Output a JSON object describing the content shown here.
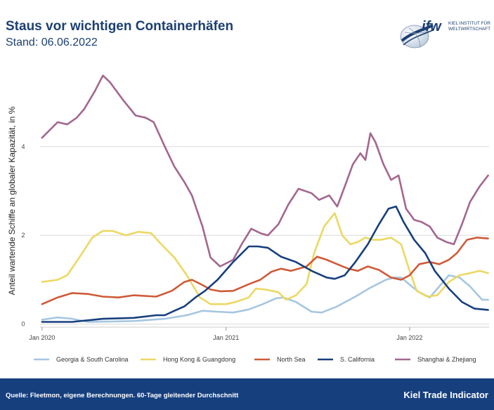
{
  "header": {
    "title": "Staus vor wichtigen Containerhäfen",
    "subtitle": "Stand: 06.06.2022"
  },
  "logo": {
    "mark": "ifw",
    "line1": "KIEL INSTITUT FÜR",
    "line2": "WELTWIRTSCHAFT",
    "icon": "globe-icon"
  },
  "footer": {
    "source": "Quelle: Fleetmon, eigene Berechnungen. 60-Tage gleitender Durchschnitt",
    "brand": "Kiel Trade Indicator"
  },
  "colors": {
    "header_text": "#1c3f73",
    "footer_bg": "#163f7e",
    "grid": "#d9d9d9"
  },
  "chart_data": {
    "type": "line",
    "ylabel": "Anteil wartende Schiffe an globaler Kapazität, in %",
    "xlabel": "",
    "ylim": [
      -0.1,
      5.8
    ],
    "xlim": [
      "2019-12-28",
      "2022-06-08"
    ],
    "yticks": [
      0,
      2,
      4
    ],
    "xticks": [
      {
        "x": "2020-01-01",
        "label": "Jan 2020"
      },
      {
        "x": "2021-01-01",
        "label": "Jan 2021"
      },
      {
        "x": "2022-01-01",
        "label": "Jan 2022"
      }
    ],
    "grid": true,
    "legend_position": "bottom",
    "series": [
      {
        "name": "Georgia & South Carolina",
        "color": "#a6c6e0",
        "points": [
          [
            "2020-01-01",
            0.1
          ],
          [
            "2020-02-01",
            0.15
          ],
          [
            "2020-03-01",
            0.12
          ],
          [
            "2020-04-01",
            0.05
          ],
          [
            "2020-05-15",
            0.06
          ],
          [
            "2020-07-01",
            0.07
          ],
          [
            "2020-09-01",
            0.12
          ],
          [
            "2020-10-15",
            0.2
          ],
          [
            "2020-11-15",
            0.3
          ],
          [
            "2020-12-15",
            0.28
          ],
          [
            "2021-01-15",
            0.26
          ],
          [
            "2021-02-15",
            0.33
          ],
          [
            "2021-03-15",
            0.45
          ],
          [
            "2021-04-10",
            0.58
          ],
          [
            "2021-04-25",
            0.6
          ],
          [
            "2021-05-20",
            0.5
          ],
          [
            "2021-06-20",
            0.28
          ],
          [
            "2021-07-10",
            0.26
          ],
          [
            "2021-08-10",
            0.4
          ],
          [
            "2021-09-15",
            0.62
          ],
          [
            "2021-10-15",
            0.82
          ],
          [
            "2021-11-15",
            1.0
          ],
          [
            "2021-12-01",
            1.05
          ],
          [
            "2021-12-15",
            1.05
          ],
          [
            "2022-01-05",
            0.85
          ],
          [
            "2022-01-20",
            0.72
          ],
          [
            "2022-02-10",
            0.6
          ],
          [
            "2022-03-01",
            0.85
          ],
          [
            "2022-03-20",
            1.1
          ],
          [
            "2022-04-10",
            1.05
          ],
          [
            "2022-05-01",
            0.85
          ],
          [
            "2022-05-25",
            0.55
          ],
          [
            "2022-06-06",
            0.55
          ]
        ]
      },
      {
        "name": "Hong Kong & Guangdong",
        "color": "#ecd863",
        "points": [
          [
            "2020-01-01",
            0.95
          ],
          [
            "2020-02-01",
            1.0
          ],
          [
            "2020-02-20",
            1.1
          ],
          [
            "2020-03-15",
            1.5
          ],
          [
            "2020-04-10",
            1.95
          ],
          [
            "2020-05-01",
            2.1
          ],
          [
            "2020-05-20",
            2.1
          ],
          [
            "2020-06-15",
            2.0
          ],
          [
            "2020-07-10",
            2.08
          ],
          [
            "2020-08-05",
            2.05
          ],
          [
            "2020-08-25",
            1.8
          ],
          [
            "2020-09-20",
            1.5
          ],
          [
            "2020-10-15",
            1.1
          ],
          [
            "2020-11-10",
            0.6
          ],
          [
            "2020-12-01",
            0.45
          ],
          [
            "2021-01-01",
            0.45
          ],
          [
            "2021-01-20",
            0.5
          ],
          [
            "2021-02-15",
            0.6
          ],
          [
            "2021-03-01",
            0.8
          ],
          [
            "2021-03-20",
            0.78
          ],
          [
            "2021-04-15",
            0.72
          ],
          [
            "2021-04-30",
            0.55
          ],
          [
            "2021-05-20",
            0.65
          ],
          [
            "2021-06-10",
            0.9
          ],
          [
            "2021-06-25",
            1.6
          ],
          [
            "2021-07-15",
            2.2
          ],
          [
            "2021-08-05",
            2.5
          ],
          [
            "2021-08-20",
            2.0
          ],
          [
            "2021-09-05",
            1.8
          ],
          [
            "2021-09-20",
            1.85
          ],
          [
            "2021-10-05",
            1.95
          ],
          [
            "2021-10-20",
            1.9
          ],
          [
            "2021-11-05",
            1.9
          ],
          [
            "2021-11-25",
            1.95
          ],
          [
            "2021-12-15",
            1.8
          ],
          [
            "2022-01-01",
            1.2
          ],
          [
            "2022-01-15",
            0.75
          ],
          [
            "2022-02-05",
            0.62
          ],
          [
            "2022-02-25",
            0.65
          ],
          [
            "2022-03-20",
            0.95
          ],
          [
            "2022-04-10",
            1.1
          ],
          [
            "2022-05-01",
            1.15
          ],
          [
            "2022-05-20",
            1.2
          ],
          [
            "2022-06-06",
            1.15
          ]
        ]
      },
      {
        "name": "North Sea",
        "color": "#cf5a37",
        "points": [
          [
            "2020-01-01",
            0.45
          ],
          [
            "2020-02-01",
            0.6
          ],
          [
            "2020-03-01",
            0.7
          ],
          [
            "2020-04-01",
            0.68
          ],
          [
            "2020-05-01",
            0.62
          ],
          [
            "2020-06-01",
            0.6
          ],
          [
            "2020-07-01",
            0.65
          ],
          [
            "2020-08-15",
            0.62
          ],
          [
            "2020-09-15",
            0.75
          ],
          [
            "2020-10-10",
            0.95
          ],
          [
            "2020-10-25",
            1.0
          ],
          [
            "2020-11-15",
            0.88
          ],
          [
            "2020-12-01",
            0.78
          ],
          [
            "2020-12-20",
            0.74
          ],
          [
            "2021-01-15",
            0.75
          ],
          [
            "2021-02-15",
            0.9
          ],
          [
            "2021-03-10",
            1.0
          ],
          [
            "2021-04-01",
            1.18
          ],
          [
            "2021-04-20",
            1.25
          ],
          [
            "2021-05-10",
            1.2
          ],
          [
            "2021-06-10",
            1.3
          ],
          [
            "2021-07-01",
            1.52
          ],
          [
            "2021-07-20",
            1.45
          ],
          [
            "2021-08-10",
            1.35
          ],
          [
            "2021-09-01",
            1.25
          ],
          [
            "2021-09-20",
            1.2
          ],
          [
            "2021-10-10",
            1.3
          ],
          [
            "2021-11-01",
            1.22
          ],
          [
            "2021-11-25",
            1.05
          ],
          [
            "2021-12-15",
            1.0
          ],
          [
            "2022-01-01",
            1.1
          ],
          [
            "2022-01-20",
            1.35
          ],
          [
            "2022-02-10",
            1.4
          ],
          [
            "2022-03-01",
            1.35
          ],
          [
            "2022-03-20",
            1.45
          ],
          [
            "2022-04-05",
            1.6
          ],
          [
            "2022-04-25",
            1.9
          ],
          [
            "2022-05-15",
            1.95
          ],
          [
            "2022-06-06",
            1.93
          ]
        ]
      },
      {
        "name": "S. California",
        "color": "#173f7e",
        "points": [
          [
            "2020-01-01",
            0.05
          ],
          [
            "2020-03-01",
            0.05
          ],
          [
            "2020-05-01",
            0.12
          ],
          [
            "2020-07-01",
            0.14
          ],
          [
            "2020-08-15",
            0.2
          ],
          [
            "2020-09-01",
            0.2
          ],
          [
            "2020-09-20",
            0.3
          ],
          [
            "2020-10-10",
            0.4
          ],
          [
            "2020-11-01",
            0.6
          ],
          [
            "2020-11-20",
            0.75
          ],
          [
            "2020-12-15",
            1.0
          ],
          [
            "2021-01-15",
            1.4
          ],
          [
            "2021-02-15",
            1.75
          ],
          [
            "2021-03-05",
            1.75
          ],
          [
            "2021-03-25",
            1.72
          ],
          [
            "2021-04-20",
            1.52
          ],
          [
            "2021-05-20",
            1.4
          ],
          [
            "2021-06-20",
            1.2
          ],
          [
            "2021-07-20",
            1.05
          ],
          [
            "2021-08-05",
            1.02
          ],
          [
            "2021-08-25",
            1.1
          ],
          [
            "2021-09-15",
            1.4
          ],
          [
            "2021-10-10",
            1.8
          ],
          [
            "2021-11-01",
            2.25
          ],
          [
            "2021-11-20",
            2.6
          ],
          [
            "2021-12-05",
            2.65
          ],
          [
            "2021-12-20",
            2.3
          ],
          [
            "2022-01-10",
            1.9
          ],
          [
            "2022-02-01",
            1.6
          ],
          [
            "2022-02-20",
            1.2
          ],
          [
            "2022-03-20",
            0.8
          ],
          [
            "2022-04-15",
            0.5
          ],
          [
            "2022-05-10",
            0.35
          ],
          [
            "2022-06-06",
            0.32
          ]
        ]
      },
      {
        "name": "Shanghai & Zhejiang",
        "color": "#a3678f",
        "points": [
          [
            "2020-01-01",
            4.2
          ],
          [
            "2020-02-01",
            4.55
          ],
          [
            "2020-02-20",
            4.5
          ],
          [
            "2020-03-10",
            4.65
          ],
          [
            "2020-03-25",
            4.85
          ],
          [
            "2020-04-15",
            5.25
          ],
          [
            "2020-05-01",
            5.6
          ],
          [
            "2020-05-15",
            5.45
          ],
          [
            "2020-06-10",
            5.05
          ],
          [
            "2020-07-05",
            4.7
          ],
          [
            "2020-07-25",
            4.65
          ],
          [
            "2020-08-10",
            4.55
          ],
          [
            "2020-09-01",
            4.0
          ],
          [
            "2020-09-20",
            3.55
          ],
          [
            "2020-10-10",
            3.2
          ],
          [
            "2020-10-25",
            2.9
          ],
          [
            "2020-11-15",
            2.2
          ],
          [
            "2020-12-01",
            1.5
          ],
          [
            "2020-12-20",
            1.3
          ],
          [
            "2021-01-15",
            1.45
          ],
          [
            "2021-02-01",
            1.8
          ],
          [
            "2021-02-20",
            2.15
          ],
          [
            "2021-03-10",
            2.05
          ],
          [
            "2021-03-25",
            2.0
          ],
          [
            "2021-04-15",
            2.25
          ],
          [
            "2021-05-05",
            2.7
          ],
          [
            "2021-05-25",
            3.05
          ],
          [
            "2021-06-20",
            2.95
          ],
          [
            "2021-07-05",
            2.8
          ],
          [
            "2021-07-25",
            2.9
          ],
          [
            "2021-08-10",
            2.65
          ],
          [
            "2021-08-25",
            3.1
          ],
          [
            "2021-09-10",
            3.6
          ],
          [
            "2021-09-25",
            3.85
          ],
          [
            "2021-10-05",
            3.7
          ],
          [
            "2021-10-15",
            4.3
          ],
          [
            "2021-10-25",
            4.1
          ],
          [
            "2021-11-10",
            3.6
          ],
          [
            "2021-11-25",
            3.25
          ],
          [
            "2021-12-10",
            3.35
          ],
          [
            "2021-12-25",
            2.6
          ],
          [
            "2022-01-10",
            2.35
          ],
          [
            "2022-01-25",
            2.3
          ],
          [
            "2022-02-10",
            2.2
          ],
          [
            "2022-02-25",
            1.95
          ],
          [
            "2022-03-15",
            1.85
          ],
          [
            "2022-03-30",
            1.8
          ],
          [
            "2022-04-15",
            2.25
          ],
          [
            "2022-05-01",
            2.75
          ],
          [
            "2022-05-20",
            3.1
          ],
          [
            "2022-06-06",
            3.35
          ]
        ]
      }
    ]
  }
}
